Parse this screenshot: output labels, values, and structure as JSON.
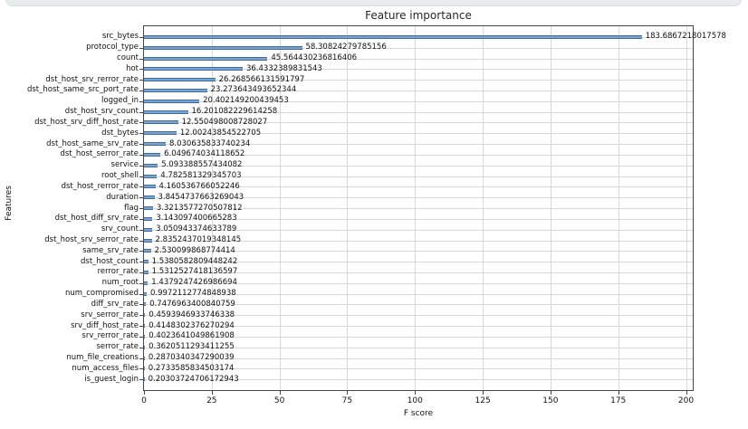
{
  "page": {
    "background_color": "#ffffff",
    "top_strip_color": "#e9eced"
  },
  "chart_data": {
    "type": "bar",
    "orientation": "horizontal",
    "title": "Feature importance",
    "xlabel": "F score",
    "ylabel": "Features",
    "grid": true,
    "legend": null,
    "xlim": [
      0,
      202.5
    ],
    "xticks": [
      0,
      25,
      50,
      75,
      100,
      125,
      150,
      175,
      200
    ],
    "bar_fill_color": "#7ca3cd",
    "bar_edge_color": "#3b6ca2",
    "categories": [
      "src_bytes",
      "protocol_type",
      "count",
      "hot",
      "dst_host_srv_rerror_rate",
      "dst_host_same_src_port_rate",
      "logged_in",
      "dst_host_srv_count",
      "dst_host_srv_diff_host_rate",
      "dst_bytes",
      "dst_host_same_srv_rate",
      "dst_host_serror_rate",
      "service",
      "root_shell",
      "dst_host_rerror_rate",
      "duration",
      "flag",
      "dst_host_diff_srv_rate",
      "srv_count",
      "dst_host_srv_serror_rate",
      "same_srv_rate",
      "dst_host_count",
      "rerror_rate",
      "num_root",
      "num_compromised",
      "diff_srv_rate",
      "srv_serror_rate",
      "srv_diff_host_rate",
      "srv_rerror_rate",
      "serror_rate",
      "num_file_creations",
      "num_access_files",
      "is_guest_login"
    ],
    "values": [
      183.6867218017578,
      58.30824279785156,
      45.564430236816406,
      36.4332389831543,
      26.268566131591797,
      23.273643493652344,
      20.402149200439453,
      16.201082229614258,
      12.550498008728027,
      12.00243854522705,
      8.030635833740234,
      6.049674034118652,
      5.093388557434082,
      4.782581329345703,
      4.160536766052246,
      3.8454737663269043,
      3.3213577270507812,
      3.143097400665283,
      3.050943374633789,
      2.8352437019348145,
      2.530099868774414,
      1.5380582809448242,
      1.5312527418136597,
      1.4379247426986694,
      0.9972112774848938,
      0.7476963400840759,
      0.4593946933746338,
      0.4148302376270294,
      0.4023641049861908,
      0.3620511293411255,
      0.2870340347290039,
      0.2733585834503174,
      0.20303724706172943
    ]
  }
}
